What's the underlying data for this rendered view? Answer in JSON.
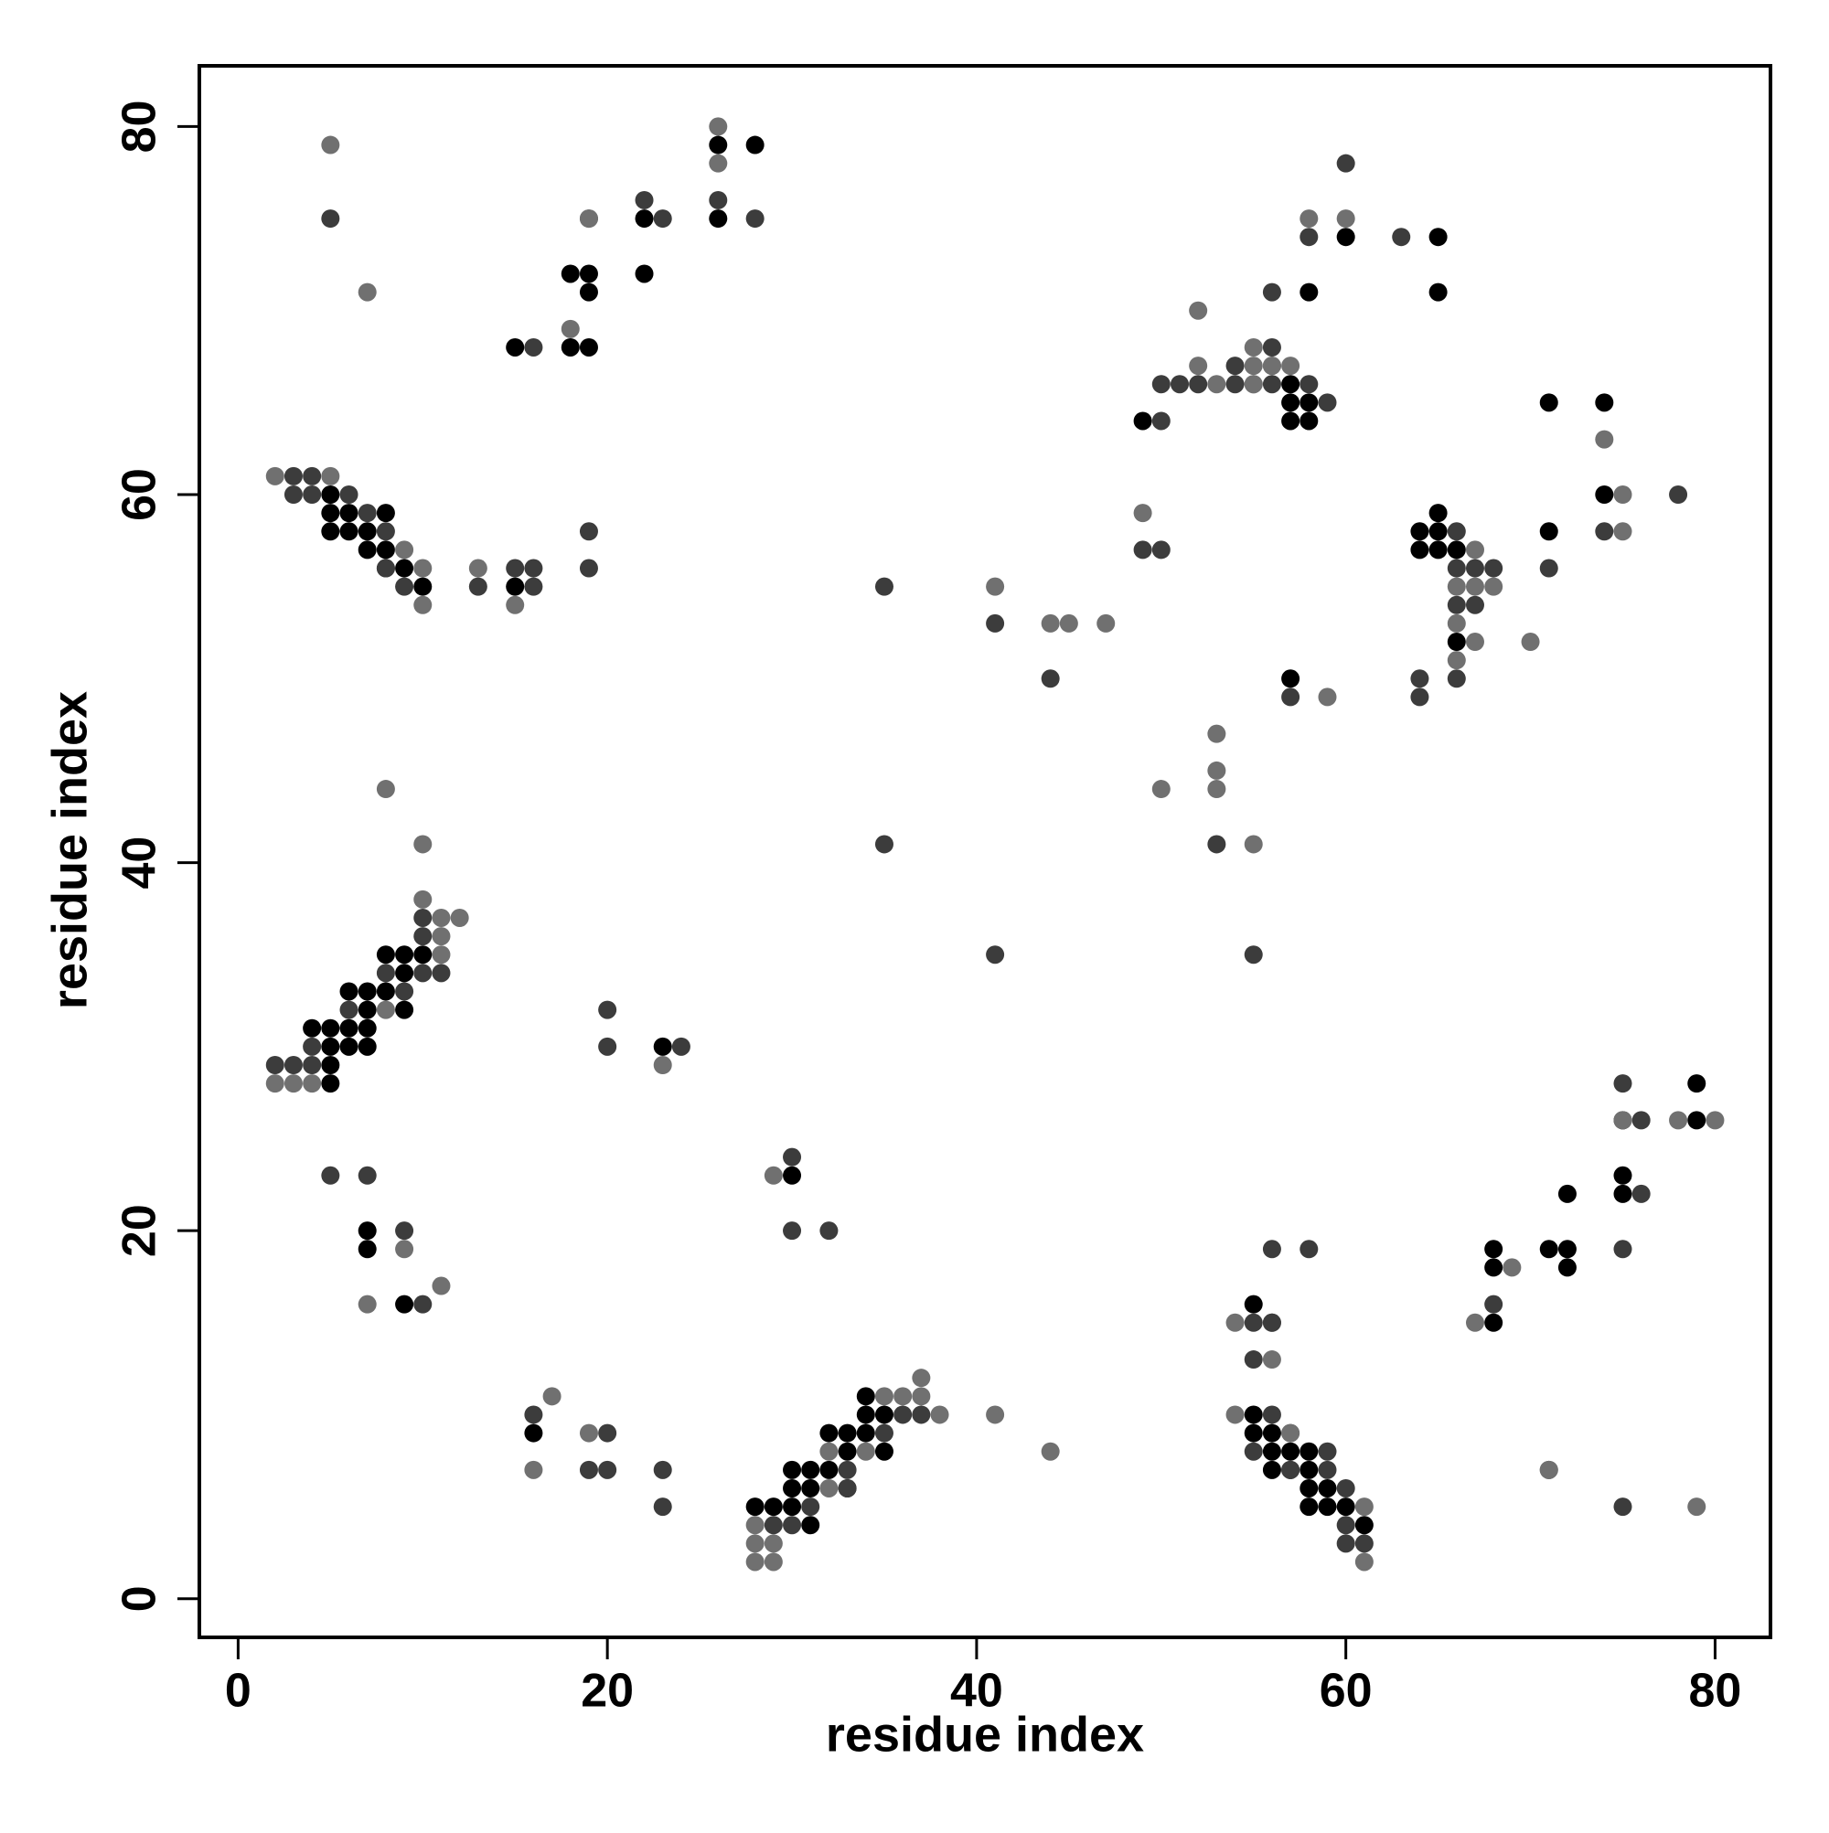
{
  "chart_data": {
    "type": "scatter",
    "xlabel": "residue index",
    "ylabel": "residue index",
    "xlim": [
      -2.1,
      83
    ],
    "ylim": [
      -2.1,
      83.3
    ],
    "xticks": [
      0,
      20,
      40,
      60,
      80
    ],
    "yticks": [
      0,
      20,
      40,
      60,
      80
    ],
    "series": [
      {
        "color": "#000000",
        "x": [
          5,
          5,
          6,
          8,
          5,
          6,
          7,
          7,
          8,
          8,
          9,
          10,
          15,
          15,
          18,
          19,
          19,
          18,
          19,
          22,
          22,
          26,
          28,
          26,
          8,
          9,
          10,
          9,
          6,
          7,
          8,
          7,
          9,
          4,
          5,
          6,
          7,
          5,
          6,
          7,
          5,
          5,
          23,
          30,
          7,
          7,
          9,
          16,
          34,
          35,
          34,
          32,
          33,
          34,
          33,
          35,
          30,
          31,
          32,
          30,
          31,
          33,
          28,
          29,
          30,
          31,
          60,
          65,
          58,
          65,
          57,
          57,
          58,
          57,
          58,
          49,
          71,
          74,
          74,
          71,
          65,
          64,
          65,
          64,
          65,
          66,
          66,
          57,
          79,
          75,
          79,
          75,
          75,
          72,
          71,
          72,
          72,
          68,
          68,
          68,
          55,
          55,
          55,
          56,
          56,
          57,
          58,
          56,
          57,
          58,
          58,
          59,
          58,
          59,
          60,
          61
        ],
        "y": [
          60,
          59,
          59,
          59,
          58,
          58,
          58,
          57,
          57,
          56,
          56,
          55,
          68,
          55,
          72,
          72,
          71,
          68,
          68,
          75,
          72,
          79,
          79,
          75,
          35,
          35,
          35,
          34,
          33,
          33,
          33,
          32,
          32,
          31,
          31,
          31,
          31,
          30,
          30,
          30,
          29,
          28,
          30,
          23,
          20,
          19,
          16,
          9,
          11,
          10,
          10,
          9,
          9,
          9,
          8,
          8,
          7,
          7,
          7,
          6,
          6,
          6,
          5,
          5,
          5,
          4,
          74,
          74,
          71,
          71,
          66,
          65,
          65,
          64,
          64,
          64,
          65,
          65,
          60,
          58,
          59,
          58,
          58,
          57,
          57,
          57,
          52,
          50,
          28,
          26,
          26,
          23,
          22,
          22,
          19,
          19,
          18,
          19,
          18,
          15,
          16,
          10,
          9,
          9,
          8,
          8,
          8,
          7,
          7,
          7,
          6,
          6,
          5,
          5,
          5,
          4
        ]
      },
      {
        "color": "#3c3c3c",
        "x": [
          5,
          3,
          4,
          3,
          4,
          6,
          7,
          8,
          8,
          9,
          13,
          15,
          16,
          16,
          19,
          19,
          16,
          19,
          22,
          23,
          26,
          28,
          10,
          10,
          8,
          10,
          11,
          9,
          6,
          4,
          2,
          3,
          4,
          20,
          20,
          24,
          5,
          7,
          9,
          10,
          30,
          30,
          32,
          16,
          20,
          19,
          20,
          23,
          23,
          36,
          37,
          35,
          33,
          33,
          31,
          29,
          30,
          35,
          41,
          44,
          35,
          41,
          60,
          58,
          63,
          56,
          54,
          56,
          56,
          50,
          51,
          52,
          54,
          56,
          58,
          59,
          50,
          49,
          50,
          78,
          74,
          71,
          66,
          66,
          67,
          68,
          66,
          67,
          66,
          64,
          64,
          57,
          53,
          55,
          75,
          76,
          76,
          75,
          68,
          56,
          58,
          56,
          55,
          56,
          55,
          56,
          57,
          55,
          59,
          57,
          59,
          60,
          60,
          60,
          61,
          71,
          75
        ],
        "y": [
          75,
          60,
          60,
          61,
          61,
          60,
          59,
          58,
          56,
          55,
          55,
          56,
          56,
          55,
          58,
          56,
          68,
          75,
          76,
          75,
          76,
          75,
          37,
          36,
          34,
          34,
          34,
          33,
          32,
          30,
          29,
          29,
          29,
          32,
          30,
          30,
          23,
          23,
          20,
          16,
          24,
          20,
          20,
          10,
          9,
          7,
          7,
          7,
          5,
          10,
          10,
          9,
          7,
          6,
          5,
          4,
          4,
          55,
          53,
          50,
          41,
          35,
          78,
          74,
          74,
          71,
          67,
          68,
          67,
          66,
          66,
          66,
          66,
          66,
          66,
          65,
          64,
          57,
          57,
          60,
          58,
          56,
          56,
          54,
          56,
          56,
          58,
          54,
          50,
          50,
          49,
          49,
          41,
          35,
          28,
          26,
          22,
          19,
          16,
          19,
          19,
          15,
          15,
          15,
          13,
          10,
          9,
          8,
          8,
          7,
          7,
          6,
          4,
          3,
          3,
          7,
          5
        ]
      },
      {
        "color": "#707070",
        "x": [
          5,
          7,
          2,
          5,
          9,
          10,
          10,
          13,
          15,
          18,
          19,
          26,
          26,
          8,
          10,
          10,
          11,
          12,
          11,
          11,
          8,
          2,
          3,
          4,
          9,
          7,
          11,
          23,
          29,
          17,
          16,
          19,
          37,
          35,
          36,
          37,
          38,
          32,
          34,
          32,
          28,
          28,
          29,
          28,
          29,
          41,
          44,
          41,
          44,
          45,
          47,
          60,
          58,
          52,
          52,
          55,
          55,
          57,
          53,
          55,
          49,
          74,
          75,
          75,
          70,
          67,
          66,
          67,
          68,
          66,
          67,
          66,
          59,
          53,
          53,
          53,
          50,
          55,
          78,
          80,
          69,
          67,
          75,
          54,
          56,
          54,
          61,
          61,
          71,
          79,
          57,
          56,
          55
        ],
        "y": [
          79,
          71,
          61,
          61,
          57,
          56,
          54,
          56,
          54,
          69,
          75,
          80,
          78,
          44,
          41,
          38,
          37,
          37,
          36,
          35,
          32,
          28,
          28,
          28,
          19,
          16,
          17,
          29,
          23,
          11,
          7,
          9,
          12,
          11,
          11,
          11,
          10,
          8,
          8,
          6,
          4,
          3,
          3,
          2,
          2,
          55,
          8,
          10,
          53,
          53,
          53,
          75,
          75,
          70,
          67,
          68,
          67,
          67,
          66,
          66,
          59,
          63,
          60,
          58,
          52,
          57,
          55,
          55,
          55,
          53,
          52,
          51,
          49,
          47,
          45,
          44,
          44,
          41,
          26,
          26,
          18,
          15,
          26,
          10,
          13,
          15,
          5,
          2,
          7,
          5,
          9,
          67,
          66
        ]
      }
    ]
  }
}
